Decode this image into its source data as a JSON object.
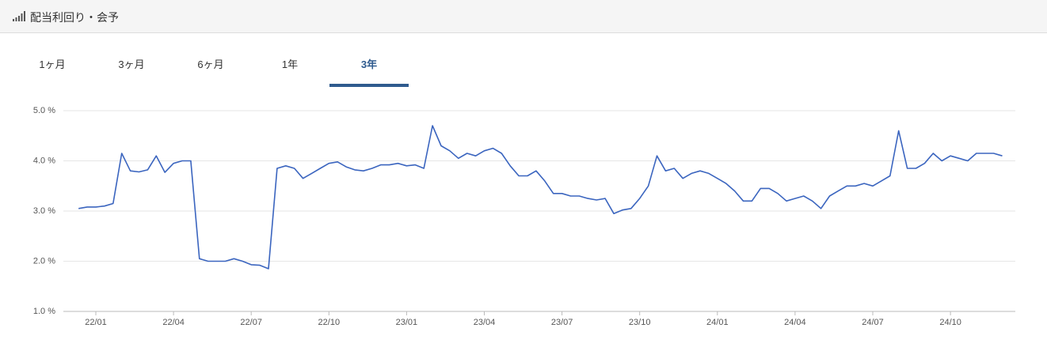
{
  "header": {
    "title": "配当利回り・会予"
  },
  "tabs": [
    {
      "label": "1ヶ月"
    },
    {
      "label": "3ヶ月"
    },
    {
      "label": "6ヶ月"
    },
    {
      "label": "1年"
    },
    {
      "label": "3年",
      "selected": true
    }
  ],
  "chart_data": {
    "type": "line",
    "color": "#3b65bf",
    "grid": true,
    "ylim": [
      1,
      5
    ],
    "yticks": [
      {
        "value": 1,
        "label": "1.0 %"
      },
      {
        "value": 2,
        "label": "2.0 %"
      },
      {
        "value": 3,
        "label": "3.0 %"
      },
      {
        "value": 4,
        "label": "4.0 %"
      },
      {
        "value": 5,
        "label": "5.0 %"
      }
    ],
    "categories": [
      null,
      null,
      "22/01",
      null,
      null,
      null,
      null,
      null,
      null,
      null,
      null,
      "22/04",
      null,
      null,
      null,
      null,
      null,
      null,
      null,
      null,
      "22/07",
      null,
      null,
      null,
      null,
      null,
      null,
      null,
      null,
      "22/10",
      null,
      null,
      null,
      null,
      null,
      null,
      null,
      null,
      "23/01",
      null,
      null,
      null,
      null,
      null,
      null,
      null,
      null,
      "23/04",
      null,
      null,
      null,
      null,
      null,
      null,
      null,
      null,
      "23/07",
      null,
      null,
      null,
      null,
      null,
      null,
      null,
      null,
      "23/10",
      null,
      null,
      null,
      null,
      null,
      null,
      null,
      null,
      "24/01",
      null,
      null,
      null,
      null,
      null,
      null,
      null,
      null,
      "24/04",
      null,
      null,
      null,
      null,
      null,
      null,
      null,
      null,
      "24/07",
      null,
      null,
      null,
      null,
      null,
      null,
      null,
      null,
      "24/10",
      null,
      null,
      null,
      null,
      null,
      null
    ],
    "values": [
      3.05,
      3.08,
      3.08,
      3.1,
      3.15,
      4.15,
      3.8,
      3.78,
      3.82,
      4.1,
      3.77,
      3.95,
      4.0,
      4.0,
      2.05,
      2.0,
      2.0,
      2.0,
      2.05,
      2.0,
      1.93,
      1.92,
      1.85,
      3.85,
      3.9,
      3.85,
      3.65,
      3.75,
      3.85,
      3.95,
      3.98,
      3.88,
      3.82,
      3.8,
      3.85,
      3.92,
      3.92,
      3.95,
      3.9,
      3.92,
      3.85,
      4.7,
      4.3,
      4.2,
      4.05,
      4.15,
      4.1,
      4.2,
      4.25,
      4.15,
      3.9,
      3.7,
      3.7,
      3.8,
      3.6,
      3.35,
      3.35,
      3.3,
      3.3,
      3.25,
      3.22,
      3.25,
      2.95,
      3.02,
      3.05,
      3.25,
      3.5,
      4.1,
      3.8,
      3.85,
      3.65,
      3.75,
      3.8,
      3.75,
      3.65,
      3.55,
      3.4,
      3.2,
      3.2,
      3.45,
      3.45,
      3.35,
      3.2,
      3.25,
      3.3,
      3.2,
      3.05,
      3.3,
      3.4,
      3.5,
      3.5,
      3.55,
      3.5,
      3.6,
      3.7,
      4.6,
      3.85,
      3.85,
      3.95,
      4.15,
      4.0,
      4.1,
      4.05,
      4.0,
      4.15,
      4.15,
      4.15,
      4.1
    ]
  }
}
